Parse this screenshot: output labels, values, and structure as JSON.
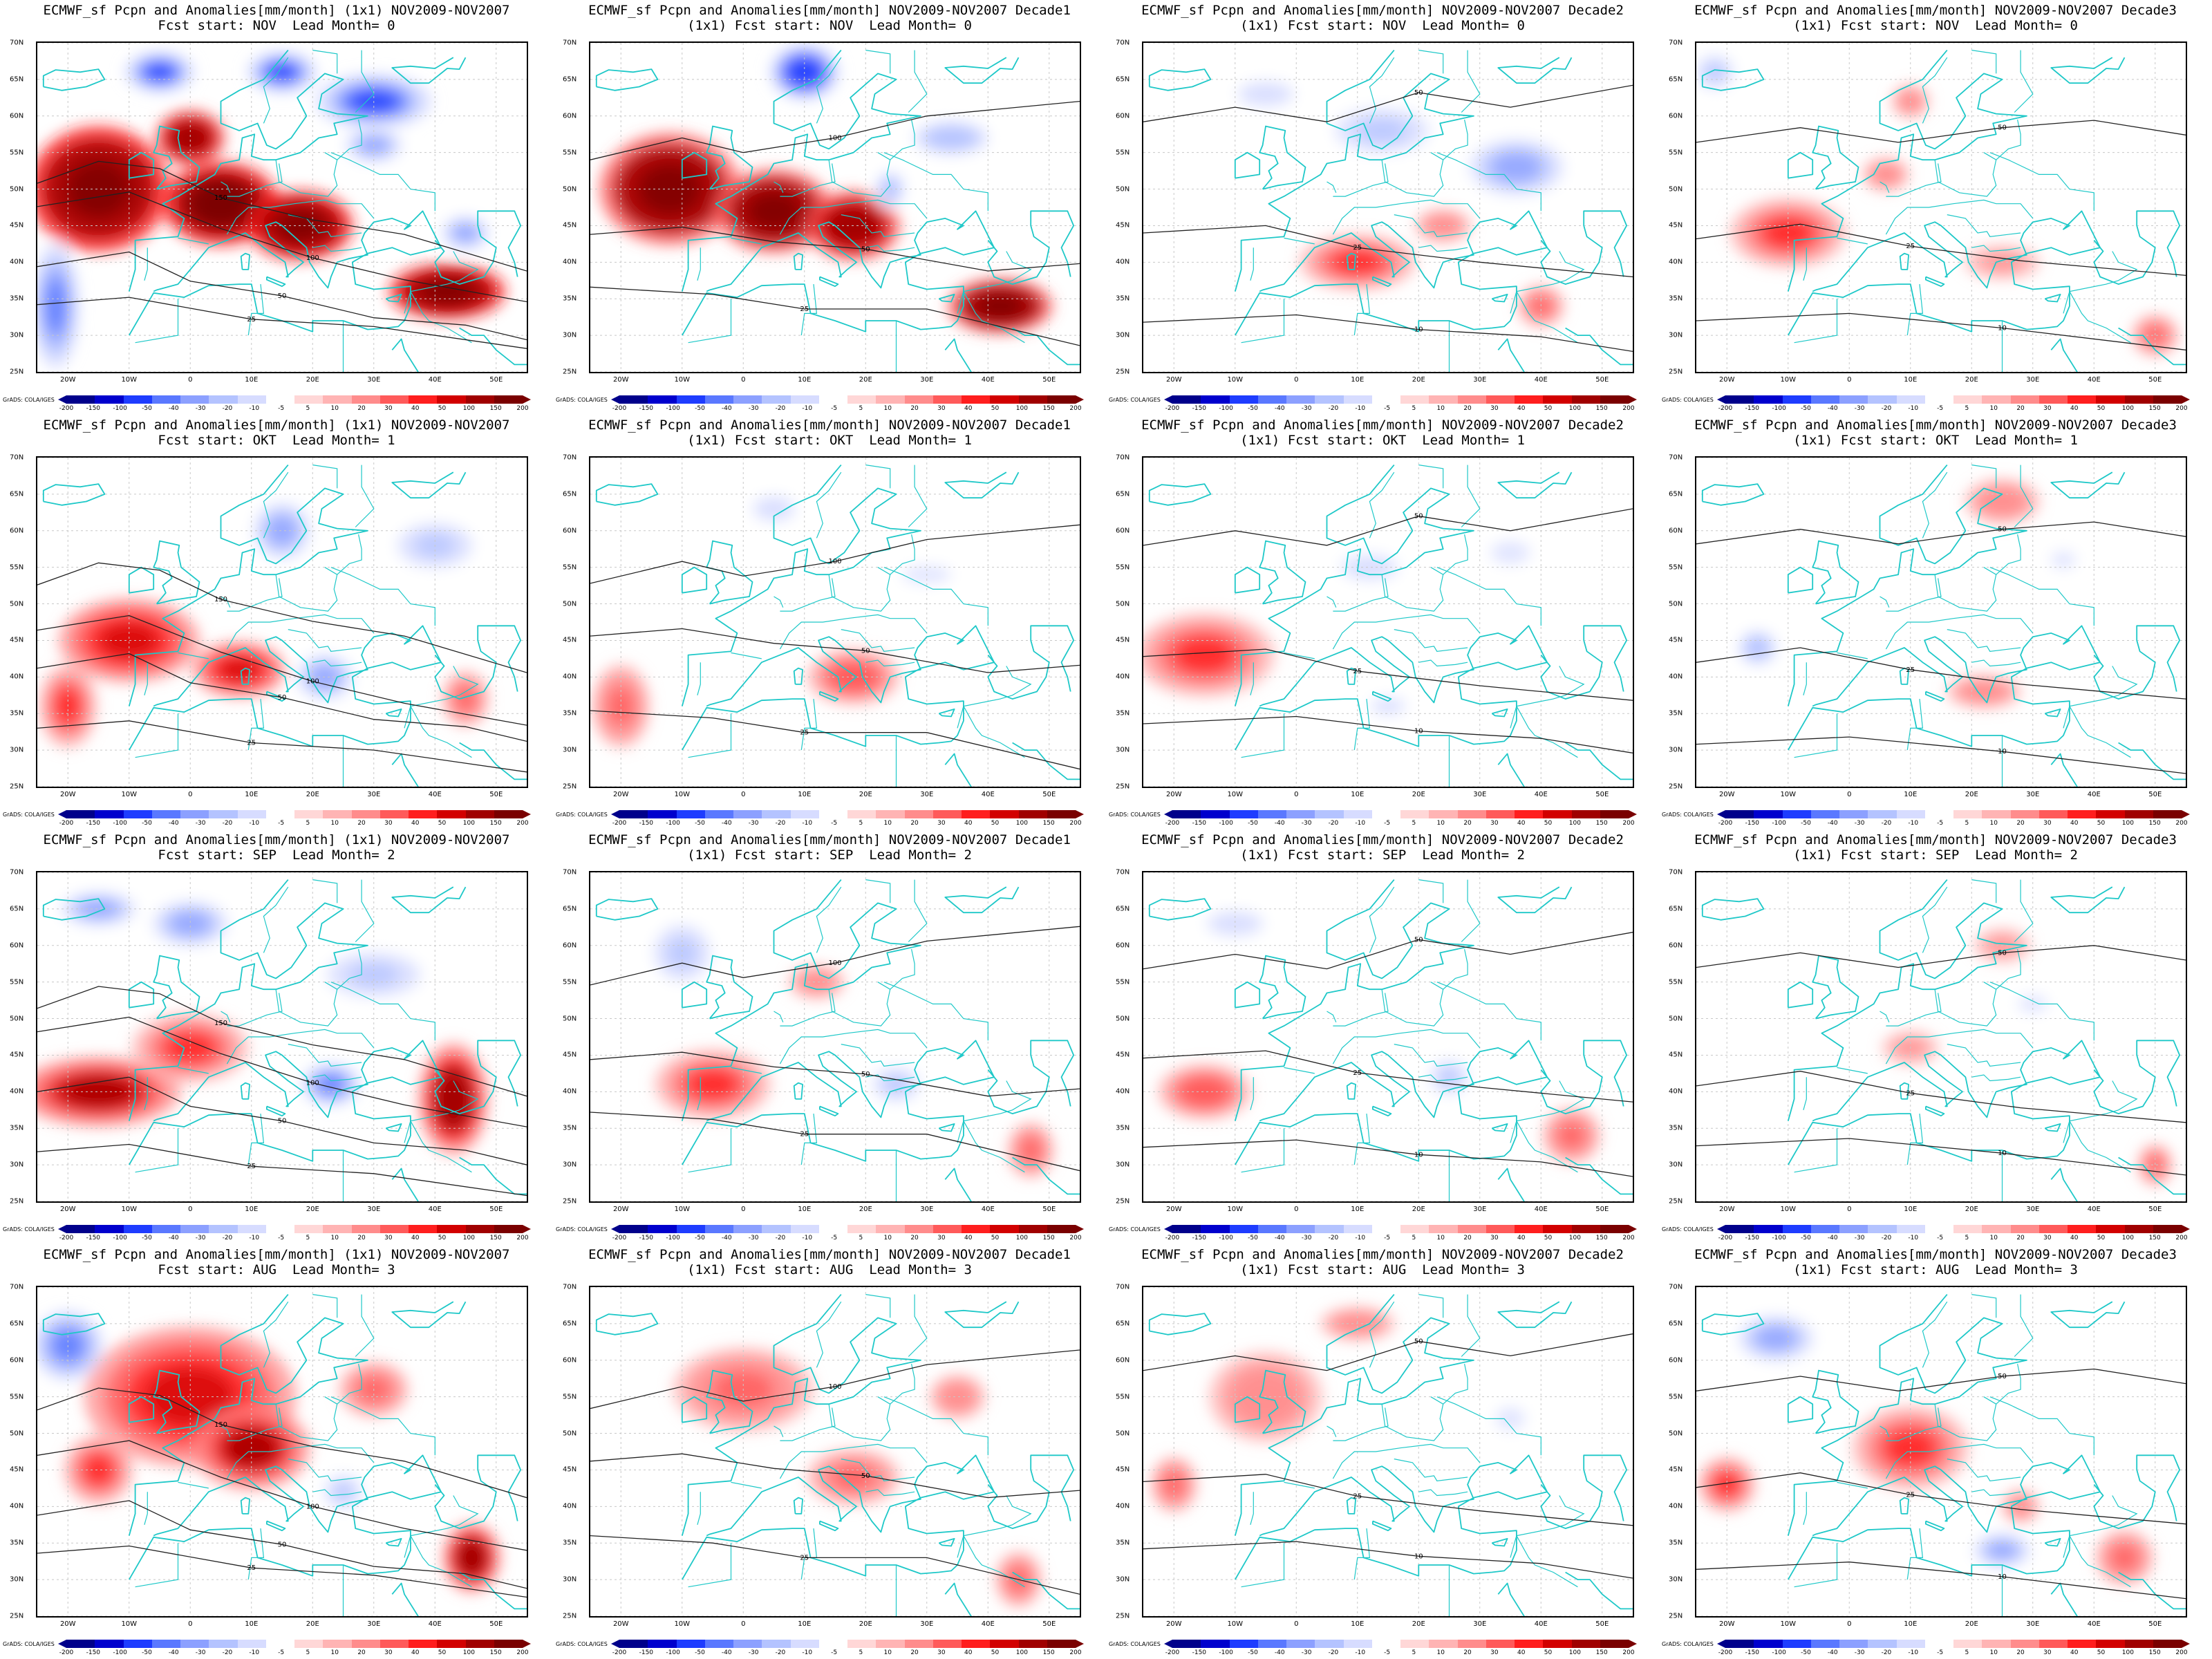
{
  "colors": {
    "coast": "#1ec8c8",
    "contour": "#222222",
    "gridline": "#c8c8c8",
    "scale": [
      "#00008b",
      "#0000cd",
      "#1e3cff",
      "#5a78ff",
      "#8ca0ff",
      "#b4c3ff",
      "#d7dcff",
      "#ffffff",
      "#ffd7d7",
      "#ffb4b4",
      "#ff8c8c",
      "#ff5a5a",
      "#ff1e1e",
      "#d20000",
      "#a00000",
      "#7a0000"
    ]
  },
  "colorbar": {
    "ticks": [
      "-200",
      "-150",
      "-100",
      "-50",
      "-40",
      "-30",
      "-20",
      "-10",
      "-5",
      "5",
      "10",
      "20",
      "30",
      "40",
      "50",
      "100",
      "150",
      "200"
    ]
  },
  "credit": "GrADS: COLA/IGES",
  "axes": {
    "lon_labels": [
      "20W",
      "10W",
      "0",
      "10E",
      "20E",
      "30E",
      "40E",
      "50E"
    ],
    "lat_labels": [
      "70N",
      "65N",
      "60N",
      "55N",
      "50N",
      "45N",
      "40N",
      "35N",
      "30N",
      "25N"
    ]
  },
  "panels": [
    {
      "title1": "ECMWF_sf Pcpn and Anomalies[mm/month] (1x1) NOV2009-NOV2007",
      "title2": "Fcst start: NOV  Lead Month= 0",
      "intensity": 1.0
    },
    {
      "title1": "ECMWF_sf Pcpn and Anomalies[mm/month] NOV2009-NOV2007 Decade1",
      "title2": "(1x1) Fcst start: NOV  Lead Month= 0",
      "intensity": 0.9
    },
    {
      "title1": "ECMWF_sf Pcpn and Anomalies[mm/month] NOV2009-NOV2007 Decade2",
      "title2": "(1x1) Fcst start: NOV  Lead Month= 0",
      "intensity": 0.45
    },
    {
      "title1": "ECMWF_sf Pcpn and Anomalies[mm/month] NOV2009-NOV2007 Decade3",
      "title2": "(1x1) Fcst start: NOV  Lead Month= 0",
      "intensity": 0.4
    },
    {
      "title1": "ECMWF_sf Pcpn and Anomalies[mm/month] (1x1) NOV2009-NOV2007",
      "title2": "Fcst start: OKT  Lead Month= 1",
      "intensity": 0.55
    },
    {
      "title1": "ECMWF_sf Pcpn and Anomalies[mm/month] NOV2009-NOV2007 Decade1",
      "title2": "(1x1) Fcst start: OKT  Lead Month= 1",
      "intensity": 0.35
    },
    {
      "title1": "ECMWF_sf Pcpn and Anomalies[mm/month] NOV2009-NOV2007 Decade2",
      "title2": "(1x1) Fcst start: OKT  Lead Month= 1",
      "intensity": 0.4
    },
    {
      "title1": "ECMWF_sf Pcpn and Anomalies[mm/month] NOV2009-NOV2007 Decade3",
      "title2": "(1x1) Fcst start: OKT  Lead Month= 1",
      "intensity": 0.3
    },
    {
      "title1": "ECMWF_sf Pcpn and Anomalies[mm/month] (1x1) NOV2009-NOV2007",
      "title2": "Fcst start: SEP  Lead Month= 2",
      "intensity": 0.6
    },
    {
      "title1": "ECMWF_sf Pcpn and Anomalies[mm/month] NOV2009-NOV2007 Decade1",
      "title2": "(1x1) Fcst start: SEP  Lead Month= 2",
      "intensity": 0.4
    },
    {
      "title1": "ECMWF_sf Pcpn and Anomalies[mm/month] NOV2009-NOV2007 Decade2",
      "title2": "(1x1) Fcst start: SEP  Lead Month= 2",
      "intensity": 0.35
    },
    {
      "title1": "ECMWF_sf Pcpn and Anomalies[mm/month] NOV2009-NOV2007 Decade3",
      "title2": "(1x1) Fcst start: SEP  Lead Month= 2",
      "intensity": 0.3
    },
    {
      "title1": "ECMWF_sf Pcpn and Anomalies[mm/month] (1x1) NOV2009-NOV2007",
      "title2": "Fcst start: AUG  Lead Month= 3",
      "intensity": 0.55
    },
    {
      "title1": "ECMWF_sf Pcpn and Anomalies[mm/month] NOV2009-NOV2007 Decade1",
      "title2": "(1x1) Fcst start: AUG  Lead Month= 3",
      "intensity": 0.3
    },
    {
      "title1": "ECMWF_sf Pcpn and Anomalies[mm/month] NOV2009-NOV2007 Decade2",
      "title2": "(1x1) Fcst start: AUG  Lead Month= 3",
      "intensity": 0.3
    },
    {
      "title1": "ECMWF_sf Pcpn and Anomalies[mm/month] NOV2009-NOV2007 Decade3",
      "title2": "(1x1) Fcst start: AUG  Lead Month= 3",
      "intensity": 0.4
    }
  ]
}
